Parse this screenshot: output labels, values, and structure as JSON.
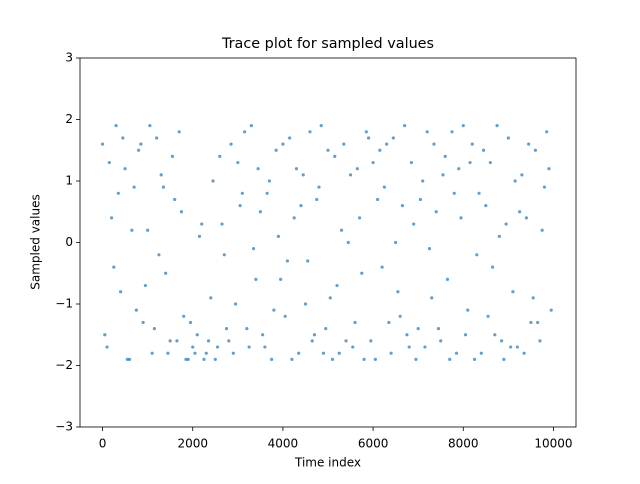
{
  "chart_data": {
    "type": "scatter",
    "title": "Trace plot for sampled values",
    "x_label": "Time index",
    "y_label": "Sampled values",
    "color": "#1f77b4",
    "x": [
      0,
      50,
      100,
      150,
      200,
      250,
      300,
      350,
      400,
      450,
      500,
      550,
      600,
      650,
      700,
      750,
      800,
      850,
      900,
      950,
      1000,
      1050,
      1100,
      1150,
      1200,
      1250,
      1300,
      1350,
      1400,
      1450,
      1500,
      1550,
      1600,
      1650,
      1700,
      1750,
      1800,
      1850,
      1900,
      1950,
      2000,
      2050,
      2100,
      2150,
      2200,
      2250,
      2300,
      2350,
      2400,
      2450,
      2500,
      2550,
      2600,
      2650,
      2700,
      2750,
      2800,
      2850,
      2900,
      2950,
      3000,
      3050,
      3100,
      3150,
      3200,
      3250,
      3300,
      3350,
      3400,
      3450,
      3500,
      3550,
      3600,
      3650,
      3700,
      3750,
      3800,
      3850,
      3900,
      3950,
      4000,
      4050,
      4100,
      4150,
      4200,
      4250,
      4300,
      4350,
      4400,
      4450,
      4500,
      4550,
      4600,
      4650,
      4700,
      4750,
      4800,
      4850,
      4900,
      4950,
      5000,
      5050,
      5100,
      5150,
      5200,
      5250,
      5300,
      5350,
      5400,
      5450,
      5500,
      5550,
      5600,
      5650,
      5700,
      5750,
      5800,
      5850,
      5900,
      5950,
      6000,
      6050,
      6100,
      6150,
      6200,
      6250,
      6300,
      6350,
      6400,
      6450,
      6500,
      6550,
      6600,
      6650,
      6700,
      6750,
      6800,
      6850,
      6900,
      6950,
      7000,
      7050,
      7100,
      7150,
      7200,
      7250,
      7300,
      7350,
      7400,
      7450,
      7500,
      7550,
      7600,
      7650,
      7700,
      7750,
      7800,
      7850,
      7900,
      7950,
      8000,
      8050,
      8100,
      8150,
      8200,
      8250,
      8300,
      8350,
      8400,
      8450,
      8500,
      8550,
      8600,
      8650,
      8700,
      8750,
      8800,
      8850,
      8900,
      8950,
      9000,
      9050,
      9100,
      9150,
      9200,
      9250,
      9300,
      9350,
      9400,
      9450,
      9500,
      9550,
      9600,
      9650,
      9700,
      9750,
      9800,
      9850,
      9900,
      9950
    ],
    "values": [
      1.6,
      -1.5,
      -1.7,
      1.3,
      0.4,
      -0.4,
      1.9,
      0.8,
      -0.8,
      1.7,
      1.2,
      -1.9,
      -1.9,
      0.2,
      0.9,
      -1.1,
      1.5,
      1.6,
      -1.3,
      -0.7,
      0.2,
      1.9,
      -1.8,
      -1.4,
      1.7,
      -0.2,
      1.1,
      0.9,
      -0.5,
      -1.8,
      -1.6,
      1.4,
      0.7,
      -1.6,
      1.8,
      0.5,
      -1.2,
      -1.9,
      -1.9,
      -1.3,
      -1.7,
      -1.8,
      -1.5,
      0.1,
      0.3,
      -1.9,
      -1.8,
      -1.6,
      -0.9,
      1.0,
      -1.9,
      -1.7,
      1.4,
      0.3,
      -0.2,
      -1.4,
      -1.6,
      1.6,
      -1.8,
      -1.0,
      1.3,
      0.6,
      0.8,
      1.8,
      -1.4,
      -1.7,
      1.9,
      -0.1,
      -0.6,
      1.2,
      0.5,
      -1.5,
      -1.7,
      0.8,
      1.0,
      -1.9,
      -1.1,
      1.5,
      0.1,
      -0.6,
      1.6,
      -1.2,
      -0.3,
      1.7,
      -1.9,
      0.4,
      1.2,
      -1.8,
      0.6,
      1.1,
      -1.0,
      -0.3,
      1.8,
      -1.6,
      -1.5,
      0.7,
      0.9,
      1.9,
      -1.8,
      -1.4,
      1.5,
      -0.9,
      -1.9,
      1.4,
      -0.7,
      -1.8,
      0.2,
      1.6,
      -1.6,
      0.0,
      1.1,
      -1.7,
      -1.3,
      1.2,
      0.4,
      -0.5,
      -1.9,
      1.8,
      1.7,
      -1.6,
      1.3,
      -1.9,
      0.7,
      1.5,
      -0.4,
      0.9,
      1.6,
      -1.3,
      -1.8,
      1.7,
      0.0,
      -0.8,
      -1.2,
      0.6,
      1.9,
      -1.5,
      -1.7,
      1.3,
      0.3,
      -1.9,
      -1.4,
      0.7,
      1.0,
      -1.7,
      1.8,
      -0.1,
      -0.9,
      1.6,
      0.5,
      -1.4,
      -1.6,
      1.1,
      1.4,
      -0.6,
      -1.9,
      1.8,
      0.8,
      -1.8,
      1.2,
      0.4,
      1.9,
      -1.5,
      -1.1,
      1.3,
      1.6,
      -1.9,
      -0.2,
      0.8,
      -1.8,
      1.5,
      0.6,
      -1.2,
      1.3,
      -0.4,
      -1.5,
      1.9,
      0.1,
      -1.6,
      -1.9,
      0.3,
      1.7,
      -1.7,
      -0.8,
      1.0,
      -1.7,
      0.5,
      1.1,
      -1.8,
      0.4,
      1.6,
      -1.3,
      -0.9,
      1.5,
      -1.3,
      -1.6,
      0.2,
      0.9,
      1.8,
      1.2,
      -1.1
    ],
    "xlim": [
      -500,
      10500
    ],
    "ylim": [
      -3,
      3
    ],
    "xticks": [
      0,
      2000,
      4000,
      6000,
      8000,
      10000
    ],
    "yticks": [
      {
        "value": -3,
        "label": "−3"
      },
      {
        "value": -2,
        "label": "−2"
      },
      {
        "value": -1,
        "label": "−1"
      },
      0,
      1,
      2,
      3
    ]
  }
}
